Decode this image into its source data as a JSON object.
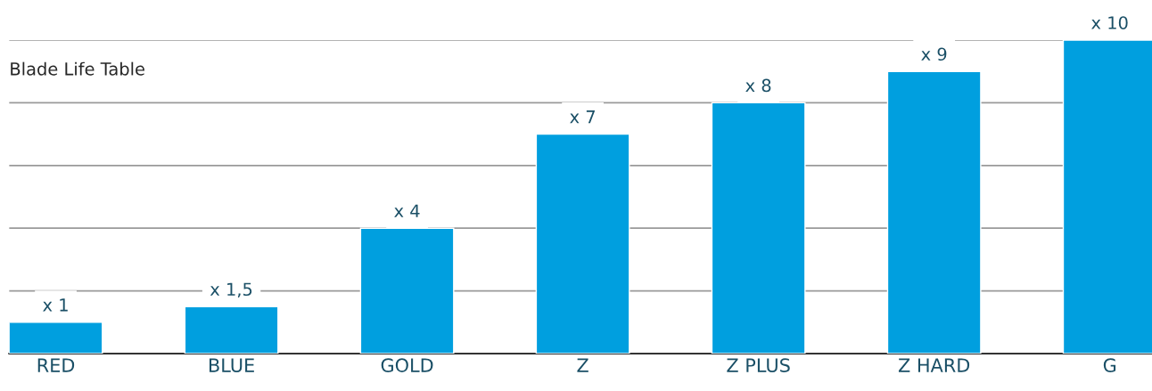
{
  "chart_data": {
    "type": "bar",
    "title": "Blade Life Table",
    "categories": [
      "RED",
      "BLUE",
      "GOLD",
      "Z",
      "Z PLUS",
      "Z HARD",
      "G"
    ],
    "values": [
      1,
      1.5,
      4,
      7,
      8,
      9,
      10
    ],
    "value_labels": [
      "x 1",
      "x 1,5",
      "x 4",
      "x 7",
      "x 8",
      "x 9",
      "x 10"
    ],
    "color": "#009fdf",
    "yticks": [
      {
        "value": 2,
        "label": null
      },
      {
        "value": 4,
        "label": null
      },
      {
        "value": 6,
        "label": null
      },
      {
        "value": 8,
        "label": null
      },
      {
        "value": 10,
        "label": null
      }
    ],
    "grid": "y",
    "legend": false
  }
}
